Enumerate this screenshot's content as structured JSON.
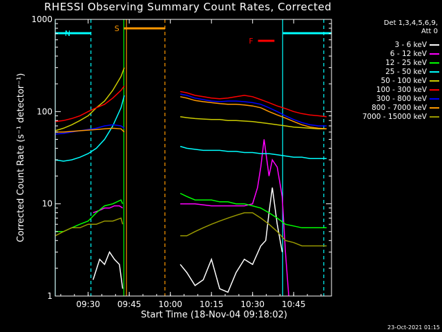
{
  "title": "RHESSI Observing Summary Count Rates, Corrected",
  "legend_head": [
    "Det 1,3,4,5,6,9,",
    "Att 0"
  ],
  "footer": "23-Oct-2021 01:15",
  "flags": [
    {
      "label": "N",
      "color": "#00ffff",
      "x0": 9.333,
      "x1": 9.517,
      "side": "left"
    },
    {
      "label": "S",
      "color": "#ff9900",
      "x0": 9.717,
      "x1": 9.967,
      "side": "left"
    },
    {
      "label": "F",
      "color": "#ff0000",
      "x0": 10.533,
      "x1": 10.633,
      "side": "left"
    }
  ],
  "chart_data": {
    "type": "line",
    "xlabel": "Start Time (18-Nov-04 09:18:02)",
    "ylabel": "Corrected Count Rate (s⁻¹ detector⁻¹)",
    "xlim": [
      9.3,
      10.98
    ],
    "ylim": [
      1,
      1000
    ],
    "yscale": "log",
    "xticks": [
      9.5,
      9.75,
      10.0,
      10.25,
      10.5,
      10.75
    ],
    "xtick_labels": [
      "09:30",
      "09:45",
      "10:00",
      "10:15",
      "10:30",
      "10:45"
    ],
    "yticks": [
      1,
      10,
      100,
      1000
    ],
    "ytick_labels": [
      "1",
      "10",
      "100",
      "1000"
    ],
    "vlines": [
      {
        "x": 9.3,
        "color": "#00ffff",
        "dash": false
      },
      {
        "x": 9.517,
        "color": "#00ffff",
        "dash": true
      },
      {
        "x": 9.717,
        "color": "#00ff00",
        "dash": false
      },
      {
        "x": 9.733,
        "color": "#ff9900",
        "dash": false
      },
      {
        "x": 9.967,
        "color": "#ff9900",
        "dash": true
      },
      {
        "x": 10.683,
        "color": "#00ffff",
        "dash": false
      },
      {
        "x": 10.933,
        "color": "#00ffff",
        "dash": true
      }
    ],
    "series": [
      {
        "name": "3 - 6 keV",
        "color": "#ffffff",
        "segments": [
          {
            "x": [
              9.53,
              9.57,
              9.6,
              9.63,
              9.66,
              9.69,
              9.71
            ],
            "y": [
              1.5,
              2.5,
              2.2,
              3,
              2.5,
              2.2,
              1.2
            ]
          },
          {
            "x": [
              10.06,
              10.1,
              10.15,
              10.2,
              10.25,
              10.3,
              10.35,
              10.4,
              10.45,
              10.5,
              10.55,
              10.58,
              10.6,
              10.62,
              10.65,
              10.68
            ],
            "y": [
              2.2,
              1.8,
              1.3,
              1.5,
              2.5,
              1.2,
              1.1,
              1.8,
              2.5,
              2.2,
              3.5,
              4,
              8,
              15,
              6,
              3
            ]
          }
        ]
      },
      {
        "name": "6 - 12 keV",
        "color": "#ff00ff",
        "segments": [
          {
            "x": [
              9.53,
              9.57,
              9.6,
              9.63,
              9.66,
              9.69,
              9.71
            ],
            "y": [
              8,
              8.5,
              9,
              9,
              9.5,
              9.5,
              9
            ]
          },
          {
            "x": [
              10.06,
              10.15,
              10.25,
              10.35,
              10.45,
              10.5,
              10.53,
              10.55,
              10.57,
              10.6,
              10.62,
              10.65,
              10.68,
              10.7,
              10.72
            ],
            "y": [
              10,
              10,
              9.5,
              9.5,
              9.5,
              10,
              15,
              25,
              50,
              20,
              30,
              25,
              12,
              3,
              1
            ]
          }
        ]
      },
      {
        "name": "12 - 25 keV",
        "color": "#00ff00",
        "segments": [
          {
            "x": [
              9.3,
              9.35,
              9.4,
              9.45,
              9.5,
              9.55,
              9.6,
              9.65,
              9.7,
              9.71
            ],
            "y": [
              5,
              5,
              5.5,
              6,
              6.5,
              8,
              9.5,
              10,
              11,
              10
            ]
          },
          {
            "x": [
              10.06,
              10.1,
              10.15,
              10.2,
              10.25,
              10.3,
              10.35,
              10.4,
              10.45,
              10.5,
              10.55,
              10.6,
              10.65,
              10.7,
              10.8,
              10.9,
              10.95
            ],
            "y": [
              13,
              12,
              11,
              11,
              11,
              10.5,
              10.5,
              10,
              10,
              9.5,
              9,
              8,
              7,
              6,
              5.5,
              5.5,
              5.5
            ]
          }
        ]
      },
      {
        "name": "25 - 50 keV",
        "color": "#00ffff",
        "segments": [
          {
            "x": [
              9.3,
              9.35,
              9.4,
              9.45,
              9.5,
              9.55,
              9.6,
              9.65,
              9.7,
              9.72
            ],
            "y": [
              30,
              29,
              30,
              32,
              35,
              40,
              50,
              70,
              110,
              150
            ]
          },
          {
            "x": [
              10.06,
              10.1,
              10.15,
              10.2,
              10.25,
              10.3,
              10.35,
              10.4,
              10.45,
              10.5,
              10.55,
              10.6,
              10.65,
              10.7,
              10.75,
              10.8,
              10.85,
              10.9,
              10.95
            ],
            "y": [
              42,
              40,
              39,
              38,
              38,
              38,
              37,
              37,
              36,
              36,
              35,
              35,
              34,
              33,
              32,
              32,
              31,
              31,
              31
            ]
          }
        ]
      },
      {
        "name": "50 - 100 keV",
        "color": "#cccc00",
        "segments": [
          {
            "x": [
              9.3,
              9.35,
              9.4,
              9.45,
              9.5,
              9.55,
              9.6,
              9.65,
              9.7,
              9.72
            ],
            "y": [
              62,
              66,
              72,
              80,
              90,
              110,
              130,
              170,
              240,
              300
            ]
          },
          {
            "x": [
              10.06,
              10.1,
              10.15,
              10.2,
              10.25,
              10.3,
              10.35,
              10.4,
              10.45,
              10.5,
              10.55,
              10.6,
              10.65,
              10.7,
              10.75,
              10.8,
              10.85,
              10.9,
              10.95
            ],
            "y": [
              88,
              86,
              84,
              83,
              82,
              82,
              80,
              80,
              79,
              78,
              76,
              74,
              72,
              70,
              68,
              67,
              66,
              65,
              65
            ]
          }
        ]
      },
      {
        "name": "100 - 300 keV",
        "color": "#ff0000",
        "segments": [
          {
            "x": [
              9.3,
              9.35,
              9.4,
              9.45,
              9.5,
              9.55,
              9.6,
              9.65,
              9.7,
              9.72
            ],
            "y": [
              78,
              80,
              84,
              90,
              100,
              110,
              120,
              140,
              170,
              190
            ]
          },
          {
            "x": [
              10.06,
              10.1,
              10.15,
              10.2,
              10.25,
              10.3,
              10.35,
              10.4,
              10.45,
              10.5,
              10.55,
              10.6,
              10.65,
              10.7,
              10.75,
              10.8,
              10.85,
              10.9,
              10.95
            ],
            "y": [
              165,
              160,
              150,
              145,
              140,
              138,
              140,
              145,
              150,
              145,
              135,
              125,
              115,
              108,
              100,
              95,
              92,
              90,
              88
            ]
          }
        ]
      },
      {
        "name": "300 - 800 keV",
        "color": "#0000ff",
        "segments": [
          {
            "x": [
              9.3,
              9.35,
              9.4,
              9.45,
              9.5,
              9.55,
              9.6,
              9.65,
              9.7,
              9.72
            ],
            "y": [
              57,
              58,
              60,
              62,
              64,
              66,
              70,
              72,
              70,
              66
            ]
          },
          {
            "x": [
              10.06,
              10.1,
              10.15,
              10.2,
              10.25,
              10.3,
              10.35,
              10.4,
              10.45,
              10.5,
              10.55,
              10.6,
              10.65,
              10.7,
              10.75,
              10.8,
              10.85,
              10.9,
              10.95
            ],
            "y": [
              155,
              150,
              140,
              135,
              130,
              128,
              130,
              130,
              128,
              125,
              120,
              110,
              100,
              90,
              82,
              76,
              72,
              70,
              70
            ]
          }
        ]
      },
      {
        "name": "800 - 7000 keV",
        "color": "#ff9900",
        "segments": [
          {
            "x": [
              9.3,
              9.35,
              9.4,
              9.45,
              9.5,
              9.55,
              9.6,
              9.65,
              9.7,
              9.72
            ],
            "y": [
              60,
              60,
              61,
              62,
              63,
              64,
              65,
              66,
              65,
              60
            ]
          },
          {
            "x": [
              10.06,
              10.1,
              10.15,
              10.2,
              10.25,
              10.3,
              10.35,
              10.4,
              10.45,
              10.5,
              10.55,
              10.6,
              10.65,
              10.7,
              10.75,
              10.8,
              10.85,
              10.9,
              10.95
            ],
            "y": [
              145,
              140,
              132,
              128,
              125,
              122,
              120,
              120,
              118,
              115,
              110,
              100,
              92,
              85,
              78,
              72,
              68,
              66,
              65
            ]
          }
        ]
      },
      {
        "name": "7000 - 15000 keV",
        "color": "#999900",
        "segments": [
          {
            "x": [
              9.3,
              9.35,
              9.4,
              9.45,
              9.5,
              9.55,
              9.6,
              9.65,
              9.7,
              9.71
            ],
            "y": [
              4.5,
              5,
              5.5,
              5.5,
              6,
              6,
              6.5,
              6.5,
              7,
              6
            ]
          },
          {
            "x": [
              10.06,
              10.1,
              10.15,
              10.2,
              10.25,
              10.3,
              10.35,
              10.4,
              10.45,
              10.5,
              10.55,
              10.6,
              10.65,
              10.7,
              10.75,
              10.8,
              10.85,
              10.9,
              10.95
            ],
            "y": [
              4.5,
              4.5,
              5,
              5.5,
              6,
              6.5,
              7,
              7.5,
              8,
              8,
              7,
              6,
              5,
              4,
              3.8,
              3.5,
              3.5,
              3.5,
              3.5
            ]
          }
        ]
      }
    ]
  }
}
